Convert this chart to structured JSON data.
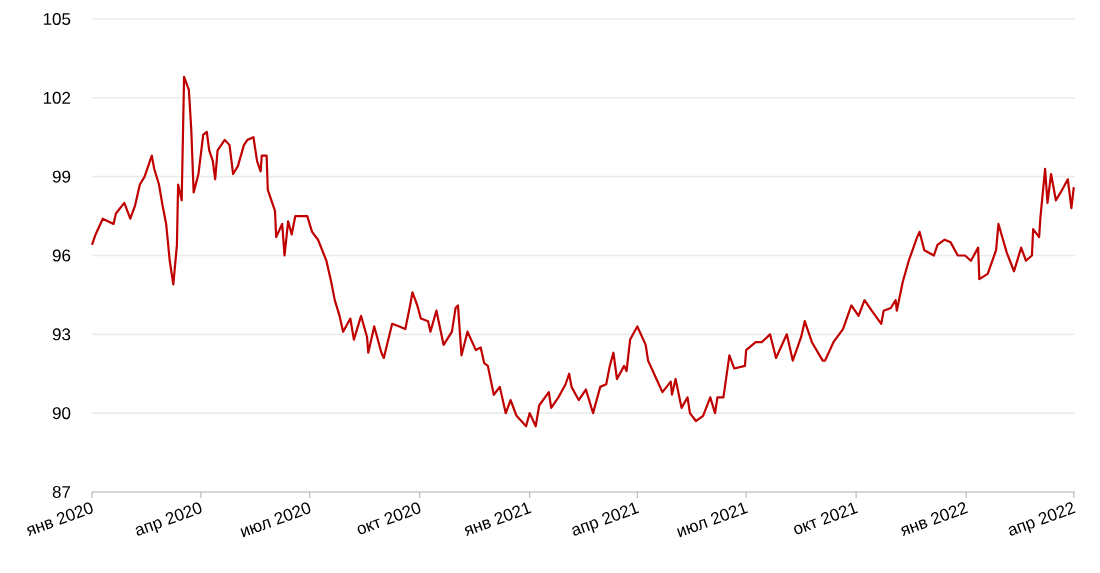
{
  "chart_data": {
    "type": "line",
    "color": "#c00000",
    "x": [
      "2020-01-01",
      "2020-01-04",
      "2020-01-10",
      "2020-01-19",
      "2020-01-21",
      "2020-01-28",
      "2020-02-02",
      "2020-02-06",
      "2020-02-10",
      "2020-02-14",
      "2020-02-20",
      "2020-02-22",
      "2020-02-26",
      "2020-02-29",
      "2020-03-03",
      "2020-03-06",
      "2020-03-09",
      "2020-03-12",
      "2020-03-13",
      "2020-03-16",
      "2020-03-18",
      "2020-03-22",
      "2020-03-24",
      "2020-03-26",
      "2020-03-30",
      "2020-04-03",
      "2020-04-06",
      "2020-04-08",
      "2020-04-11",
      "2020-04-13",
      "2020-04-15",
      "2020-04-21",
      "2020-04-25",
      "2020-04-28",
      "2020-05-02",
      "2020-05-07",
      "2020-05-10",
      "2020-05-15",
      "2020-05-18",
      "2020-05-21",
      "2020-05-22",
      "2020-05-26",
      "2020-05-27",
      "2020-06-02",
      "2020-06-03",
      "2020-06-08",
      "2020-06-10",
      "2020-06-13",
      "2020-06-16",
      "2020-06-19",
      "2020-06-25",
      "2020-06-29",
      "2020-07-03",
      "2020-07-08",
      "2020-07-15",
      "2020-07-19",
      "2020-07-22",
      "2020-07-26",
      "2020-07-29",
      "2020-08-04",
      "2020-08-07",
      "2020-08-13",
      "2020-08-18",
      "2020-08-19",
      "2020-08-24",
      "2020-08-30",
      "2020-09-01",
      "2020-09-08",
      "2020-09-14",
      "2020-09-19",
      "2020-09-23",
      "2020-09-25",
      "2020-09-29",
      "2020-10-02",
      "2020-10-08",
      "2020-10-10",
      "2020-10-15",
      "2020-10-21",
      "2020-10-28",
      "2020-10-31",
      "2020-11-02",
      "2020-11-05",
      "2020-11-10",
      "2020-11-17",
      "2020-11-21",
      "2020-11-24",
      "2020-11-27",
      "2020-12-02",
      "2020-12-07",
      "2020-12-12",
      "2020-12-16",
      "2020-12-21",
      "2020-12-29",
      "2021-01-01",
      "2021-01-06",
      "2021-01-09",
      "2021-01-17",
      "2021-01-19",
      "2021-01-25",
      "2021-01-31",
      "2021-02-03",
      "2021-02-05",
      "2021-02-11",
      "2021-02-17",
      "2021-02-23",
      "2021-03-01",
      "2021-03-06",
      "2021-03-09",
      "2021-03-12",
      "2021-03-15",
      "2021-03-21",
      "2021-03-23",
      "2021-03-26",
      "2021-04-01",
      "2021-04-08",
      "2021-04-10",
      "2021-04-17",
      "2021-04-22",
      "2021-04-29",
      "2021-04-30",
      "2021-05-03",
      "2021-05-08",
      "2021-05-13",
      "2021-05-15",
      "2021-05-20",
      "2021-05-26",
      "2021-06-01",
      "2021-06-05",
      "2021-06-07",
      "2021-06-12",
      "2021-06-17",
      "2021-06-21",
      "2021-06-30",
      "2021-07-01",
      "2021-07-09",
      "2021-07-14",
      "2021-07-21",
      "2021-07-26",
      "2021-08-04",
      "2021-08-09",
      "2021-08-16",
      "2021-08-19",
      "2021-08-25",
      "2021-09-03",
      "2021-09-05",
      "2021-09-12",
      "2021-09-20",
      "2021-09-27",
      "2021-10-03",
      "2021-10-08",
      "2021-10-14",
      "2021-10-22",
      "2021-10-24",
      "2021-10-30",
      "2021-11-03",
      "2021-11-04",
      "2021-11-09",
      "2021-11-14",
      "2021-11-21",
      "2021-11-23",
      "2021-11-27",
      "2021-12-05",
      "2021-12-08",
      "2021-12-14",
      "2021-12-19",
      "2021-12-25",
      "2021-12-31",
      "2022-01-05",
      "2022-01-11",
      "2022-01-12",
      "2022-01-19",
      "2022-01-26",
      "2022-01-28",
      "2022-02-04",
      "2022-02-10",
      "2022-02-16",
      "2022-02-20",
      "2022-02-25",
      "2022-02-26",
      "2022-03-03",
      "2022-03-04",
      "2022-03-08",
      "2022-03-10",
      "2022-03-13",
      "2022-03-17",
      "2022-03-21",
      "2022-03-27",
      "2022-03-30",
      "2022-04-01"
    ],
    "values": [
      96.4,
      96.8,
      97.4,
      97.2,
      97.6,
      98.0,
      97.4,
      97.9,
      98.7,
      99.0,
      99.8,
      99.3,
      98.7,
      97.9,
      97.2,
      95.8,
      94.9,
      96.4,
      98.7,
      98.1,
      102.8,
      102.3,
      100.8,
      98.4,
      99.1,
      100.6,
      100.7,
      100.0,
      99.6,
      98.9,
      100.0,
      100.4,
      100.2,
      99.1,
      99.4,
      100.2,
      100.4,
      100.5,
      99.6,
      99.2,
      99.8,
      99.8,
      98.5,
      97.7,
      96.7,
      97.2,
      96.0,
      97.3,
      96.8,
      97.5,
      97.5,
      97.5,
      96.9,
      96.6,
      95.8,
      95.0,
      94.3,
      93.7,
      93.1,
      93.6,
      92.8,
      93.7,
      92.9,
      92.3,
      93.3,
      92.3,
      92.1,
      93.4,
      93.3,
      93.2,
      94.1,
      94.6,
      94.1,
      93.6,
      93.5,
      93.1,
      93.9,
      92.6,
      93.1,
      94.0,
      94.1,
      92.2,
      93.1,
      92.4,
      92.5,
      91.9,
      91.8,
      90.7,
      91.0,
      90.0,
      90.5,
      89.9,
      89.5,
      90.0,
      89.5,
      90.3,
      90.8,
      90.2,
      90.6,
      91.1,
      91.5,
      91.0,
      90.5,
      90.9,
      90.0,
      91.0,
      91.1,
      91.8,
      92.3,
      91.3,
      91.8,
      91.6,
      92.8,
      93.3,
      92.6,
      92.0,
      91.3,
      90.8,
      91.2,
      90.7,
      91.3,
      90.2,
      90.6,
      90.0,
      89.7,
      89.9,
      90.6,
      90.0,
      90.6,
      90.6,
      92.2,
      91.7,
      91.8,
      92.4,
      92.7,
      92.7,
      93.0,
      92.1,
      93.0,
      92.0,
      92.9,
      93.5,
      92.7,
      92.0,
      92.0,
      92.7,
      93.2,
      94.1,
      93.7,
      94.3,
      93.9,
      93.4,
      93.9,
      94.0,
      94.3,
      93.9,
      95.0,
      95.8,
      96.7,
      96.9,
      96.2,
      96.0,
      96.4,
      96.6,
      96.5,
      96.0,
      96.0,
      95.8,
      96.3,
      95.1,
      95.3,
      96.2,
      97.2,
      96.1,
      95.4,
      96.3,
      95.8,
      96.0,
      97.0,
      96.7,
      97.4,
      99.3,
      98.0,
      99.1,
      98.1,
      98.4,
      98.9,
      97.8,
      98.6
    ],
    "xlim": [
      "2020-01-01",
      "2022-04-02"
    ],
    "xticks": [
      {
        "value": "2020-01-01",
        "label": "янв 2020"
      },
      {
        "value": "2020-04-01",
        "label": "апр 2020"
      },
      {
        "value": "2020-07-01",
        "label": "июл 2020"
      },
      {
        "value": "2020-10-01",
        "label": "окт 2020"
      },
      {
        "value": "2021-01-01",
        "label": "янв 2021"
      },
      {
        "value": "2021-04-01",
        "label": "апр 2021"
      },
      {
        "value": "2021-07-01",
        "label": "июл 2021"
      },
      {
        "value": "2021-10-01",
        "label": "окт 2021"
      },
      {
        "value": "2022-01-01",
        "label": "янв 2022"
      },
      {
        "value": "2022-04-01",
        "label": "апр 2022"
      }
    ],
    "ylim": [
      87,
      105
    ],
    "yticks": [
      87,
      90,
      93,
      96,
      99,
      102,
      105
    ],
    "grid": "y"
  }
}
